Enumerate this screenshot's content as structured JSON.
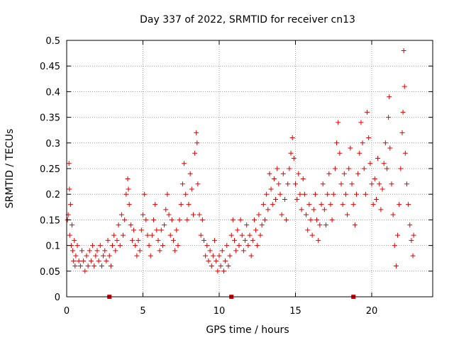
{
  "chart_data": {
    "type": "scatter",
    "title": "Day 337 of 2022, SRMTID for receiver cn13",
    "xlabel": "GPS time / hours",
    "ylabel": "SRMTID / TECUs",
    "xlim": [
      0,
      24
    ],
    "ylim": [
      0,
      0.5
    ],
    "xticks": [
      0,
      5,
      10,
      15,
      20
    ],
    "xtick_labels": [
      "0",
      "5",
      "10",
      "15",
      "20"
    ],
    "yticks": [
      0,
      0.05,
      0.1,
      0.15,
      0.2,
      0.25,
      0.3,
      0.35,
      0.4,
      0.45,
      0.5
    ],
    "ytick_labels": [
      "0",
      "0.05",
      "0.1",
      "0.15",
      "0.2",
      "0.25",
      "0.3",
      "0.35",
      "0.4",
      "0.45",
      "0.5"
    ],
    "grid": true,
    "marker": "+",
    "color": "#e00000",
    "zero_markers_x": [
      2.8,
      10.8,
      18.8
    ],
    "series": [
      {
        "name": "SRMTID",
        "points": [
          [
            0.05,
            0.15
          ],
          [
            0.1,
            0.16
          ],
          [
            0.15,
            0.26
          ],
          [
            0.18,
            0.21
          ],
          [
            0.2,
            0.12
          ],
          [
            0.25,
            0.18
          ],
          [
            0.3,
            0.1
          ],
          [
            0.35,
            0.14
          ],
          [
            0.4,
            0.09
          ],
          [
            0.45,
            0.07
          ],
          [
            0.5,
            0.11
          ],
          [
            0.55,
            0.06
          ],
          [
            0.6,
            0.08
          ],
          [
            0.7,
            0.1
          ],
          [
            0.8,
            0.07
          ],
          [
            0.9,
            0.06
          ],
          [
            1.0,
            0.09
          ],
          [
            1.1,
            0.07
          ],
          [
            1.2,
            0.05
          ],
          [
            1.3,
            0.08
          ],
          [
            1.4,
            0.06
          ],
          [
            1.5,
            0.09
          ],
          [
            1.6,
            0.07
          ],
          [
            1.7,
            0.1
          ],
          [
            1.8,
            0.06
          ],
          [
            1.9,
            0.08
          ],
          [
            2.0,
            0.09
          ],
          [
            2.1,
            0.07
          ],
          [
            2.2,
            0.1
          ],
          [
            2.3,
            0.06
          ],
          [
            2.4,
            0.08
          ],
          [
            2.5,
            0.09
          ],
          [
            2.6,
            0.07
          ],
          [
            2.7,
            0.11
          ],
          [
            2.8,
            0.08
          ],
          [
            2.9,
            0.06
          ],
          [
            3.0,
            0.1
          ],
          [
            3.1,
            0.12
          ],
          [
            3.2,
            0.09
          ],
          [
            3.3,
            0.11
          ],
          [
            3.4,
            0.14
          ],
          [
            3.5,
            0.1
          ],
          [
            3.6,
            0.16
          ],
          [
            3.7,
            0.12
          ],
          [
            3.8,
            0.15
          ],
          [
            3.9,
            0.2
          ],
          [
            4.0,
            0.23
          ],
          [
            4.05,
            0.21
          ],
          [
            4.1,
            0.18
          ],
          [
            4.2,
            0.14
          ],
          [
            4.3,
            0.11
          ],
          [
            4.4,
            0.13
          ],
          [
            4.5,
            0.1
          ],
          [
            4.6,
            0.08
          ],
          [
            4.7,
            0.11
          ],
          [
            4.8,
            0.09
          ],
          [
            4.9,
            0.13
          ],
          [
            5.0,
            0.16
          ],
          [
            5.1,
            0.2
          ],
          [
            5.2,
            0.15
          ],
          [
            5.3,
            0.12
          ],
          [
            5.4,
            0.1
          ],
          [
            5.5,
            0.08
          ],
          [
            5.6,
            0.12
          ],
          [
            5.7,
            0.15
          ],
          [
            5.8,
            0.18
          ],
          [
            5.9,
            0.13
          ],
          [
            6.0,
            0.11
          ],
          [
            6.1,
            0.09
          ],
          [
            6.2,
            0.13
          ],
          [
            6.3,
            0.1
          ],
          [
            6.4,
            0.14
          ],
          [
            6.5,
            0.17
          ],
          [
            6.6,
            0.2
          ],
          [
            6.7,
            0.16
          ],
          [
            6.8,
            0.12
          ],
          [
            6.9,
            0.15
          ],
          [
            7.0,
            0.11
          ],
          [
            7.1,
            0.09
          ],
          [
            7.2,
            0.13
          ],
          [
            7.3,
            0.1
          ],
          [
            7.4,
            0.15
          ],
          [
            7.5,
            0.18
          ],
          [
            7.6,
            0.22
          ],
          [
            7.7,
            0.26
          ],
          [
            7.8,
            0.2
          ],
          [
            7.9,
            0.15
          ],
          [
            8.0,
            0.18
          ],
          [
            8.1,
            0.24
          ],
          [
            8.2,
            0.21
          ],
          [
            8.3,
            0.16
          ],
          [
            8.4,
            0.28
          ],
          [
            8.5,
            0.32
          ],
          [
            8.55,
            0.3
          ],
          [
            8.6,
            0.22
          ],
          [
            8.7,
            0.16
          ],
          [
            8.8,
            0.12
          ],
          [
            8.9,
            0.15
          ],
          [
            9.0,
            0.11
          ],
          [
            9.1,
            0.08
          ],
          [
            9.2,
            0.1
          ],
          [
            9.3,
            0.07
          ],
          [
            9.4,
            0.09
          ],
          [
            9.5,
            0.06
          ],
          [
            9.6,
            0.08
          ],
          [
            9.7,
            0.11
          ],
          [
            9.8,
            0.07
          ],
          [
            9.9,
            0.05
          ],
          [
            10.0,
            0.08
          ],
          [
            10.1,
            0.06
          ],
          [
            10.2,
            0.09
          ],
          [
            10.3,
            0.05
          ],
          [
            10.4,
            0.07
          ],
          [
            10.5,
            0.1
          ],
          [
            10.6,
            0.06
          ],
          [
            10.7,
            0.08
          ],
          [
            10.8,
            0.12
          ],
          [
            10.9,
            0.15
          ],
          [
            11.0,
            0.11
          ],
          [
            11.1,
            0.09
          ],
          [
            11.2,
            0.13
          ],
          [
            11.3,
            0.1
          ],
          [
            11.4,
            0.15
          ],
          [
            11.5,
            0.12
          ],
          [
            11.6,
            0.09
          ],
          [
            11.7,
            0.11
          ],
          [
            11.8,
            0.14
          ],
          [
            11.9,
            0.1
          ],
          [
            12.0,
            0.12
          ],
          [
            12.1,
            0.08
          ],
          [
            12.2,
            0.11
          ],
          [
            12.3,
            0.15
          ],
          [
            12.4,
            0.13
          ],
          [
            12.5,
            0.1
          ],
          [
            12.6,
            0.16
          ],
          [
            12.7,
            0.12
          ],
          [
            12.8,
            0.14
          ],
          [
            12.9,
            0.18
          ],
          [
            13.0,
            0.15
          ],
          [
            13.1,
            0.2
          ],
          [
            13.2,
            0.17
          ],
          [
            13.3,
            0.24
          ],
          [
            13.4,
            0.21
          ],
          [
            13.5,
            0.18
          ],
          [
            13.6,
            0.23
          ],
          [
            13.7,
            0.19
          ],
          [
            13.8,
            0.25
          ],
          [
            13.9,
            0.22
          ],
          [
            14.0,
            0.2
          ],
          [
            14.1,
            0.16
          ],
          [
            14.2,
            0.24
          ],
          [
            14.3,
            0.19
          ],
          [
            14.4,
            0.15
          ],
          [
            14.5,
            0.22
          ],
          [
            14.6,
            0.25
          ],
          [
            14.7,
            0.28
          ],
          [
            14.8,
            0.31
          ],
          [
            14.9,
            0.27
          ],
          [
            15.0,
            0.22
          ],
          [
            15.1,
            0.19
          ],
          [
            15.2,
            0.24
          ],
          [
            15.3,
            0.2
          ],
          [
            15.4,
            0.17
          ],
          [
            15.5,
            0.23
          ],
          [
            15.6,
            0.2
          ],
          [
            15.7,
            0.16
          ],
          [
            15.8,
            0.13
          ],
          [
            15.9,
            0.18
          ],
          [
            16.0,
            0.15
          ],
          [
            16.1,
            0.12
          ],
          [
            16.2,
            0.17
          ],
          [
            16.3,
            0.2
          ],
          [
            16.4,
            0.15
          ],
          [
            16.5,
            0.11
          ],
          [
            16.6,
            0.14
          ],
          [
            16.7,
            0.18
          ],
          [
            16.8,
            0.22
          ],
          [
            16.9,
            0.17
          ],
          [
            17.0,
            0.14
          ],
          [
            17.1,
            0.2
          ],
          [
            17.2,
            0.24
          ],
          [
            17.3,
            0.18
          ],
          [
            17.4,
            0.15
          ],
          [
            17.5,
            0.2
          ],
          [
            17.6,
            0.25
          ],
          [
            17.7,
            0.3
          ],
          [
            17.8,
            0.34
          ],
          [
            17.9,
            0.28
          ],
          [
            18.0,
            0.22
          ],
          [
            18.1,
            0.18
          ],
          [
            18.2,
            0.24
          ],
          [
            18.3,
            0.2
          ],
          [
            18.4,
            0.16
          ],
          [
            18.5,
            0.25
          ],
          [
            18.6,
            0.29
          ],
          [
            18.7,
            0.22
          ],
          [
            18.8,
            0.18
          ],
          [
            18.9,
            0.14
          ],
          [
            19.0,
            0.2
          ],
          [
            19.1,
            0.24
          ],
          [
            19.2,
            0.28
          ],
          [
            19.3,
            0.34
          ],
          [
            19.4,
            0.3
          ],
          [
            19.5,
            0.25
          ],
          [
            19.6,
            0.2
          ],
          [
            19.7,
            0.36
          ],
          [
            19.8,
            0.31
          ],
          [
            19.9,
            0.26
          ],
          [
            20.0,
            0.22
          ],
          [
            20.1,
            0.18
          ],
          [
            20.2,
            0.23
          ],
          [
            20.3,
            0.19
          ],
          [
            20.4,
            0.27
          ],
          [
            20.5,
            0.22
          ],
          [
            20.6,
            0.17
          ],
          [
            20.7,
            0.21
          ],
          [
            20.8,
            0.26
          ],
          [
            20.9,
            0.3
          ],
          [
            21.0,
            0.25
          ],
          [
            21.1,
            0.35
          ],
          [
            21.15,
            0.39
          ],
          [
            21.2,
            0.29
          ],
          [
            21.3,
            0.22
          ],
          [
            21.4,
            0.16
          ],
          [
            21.5,
            0.1
          ],
          [
            21.6,
            0.06
          ],
          [
            21.7,
            0.12
          ],
          [
            21.8,
            0.18
          ],
          [
            21.9,
            0.25
          ],
          [
            22.0,
            0.32
          ],
          [
            22.05,
            0.36
          ],
          [
            22.1,
            0.48
          ],
          [
            22.15,
            0.41
          ],
          [
            22.2,
            0.28
          ],
          [
            22.3,
            0.22
          ],
          [
            22.4,
            0.18
          ],
          [
            22.5,
            0.14
          ],
          [
            22.6,
            0.11
          ],
          [
            22.7,
            0.08
          ],
          [
            22.75,
            0.12
          ]
        ]
      }
    ]
  }
}
